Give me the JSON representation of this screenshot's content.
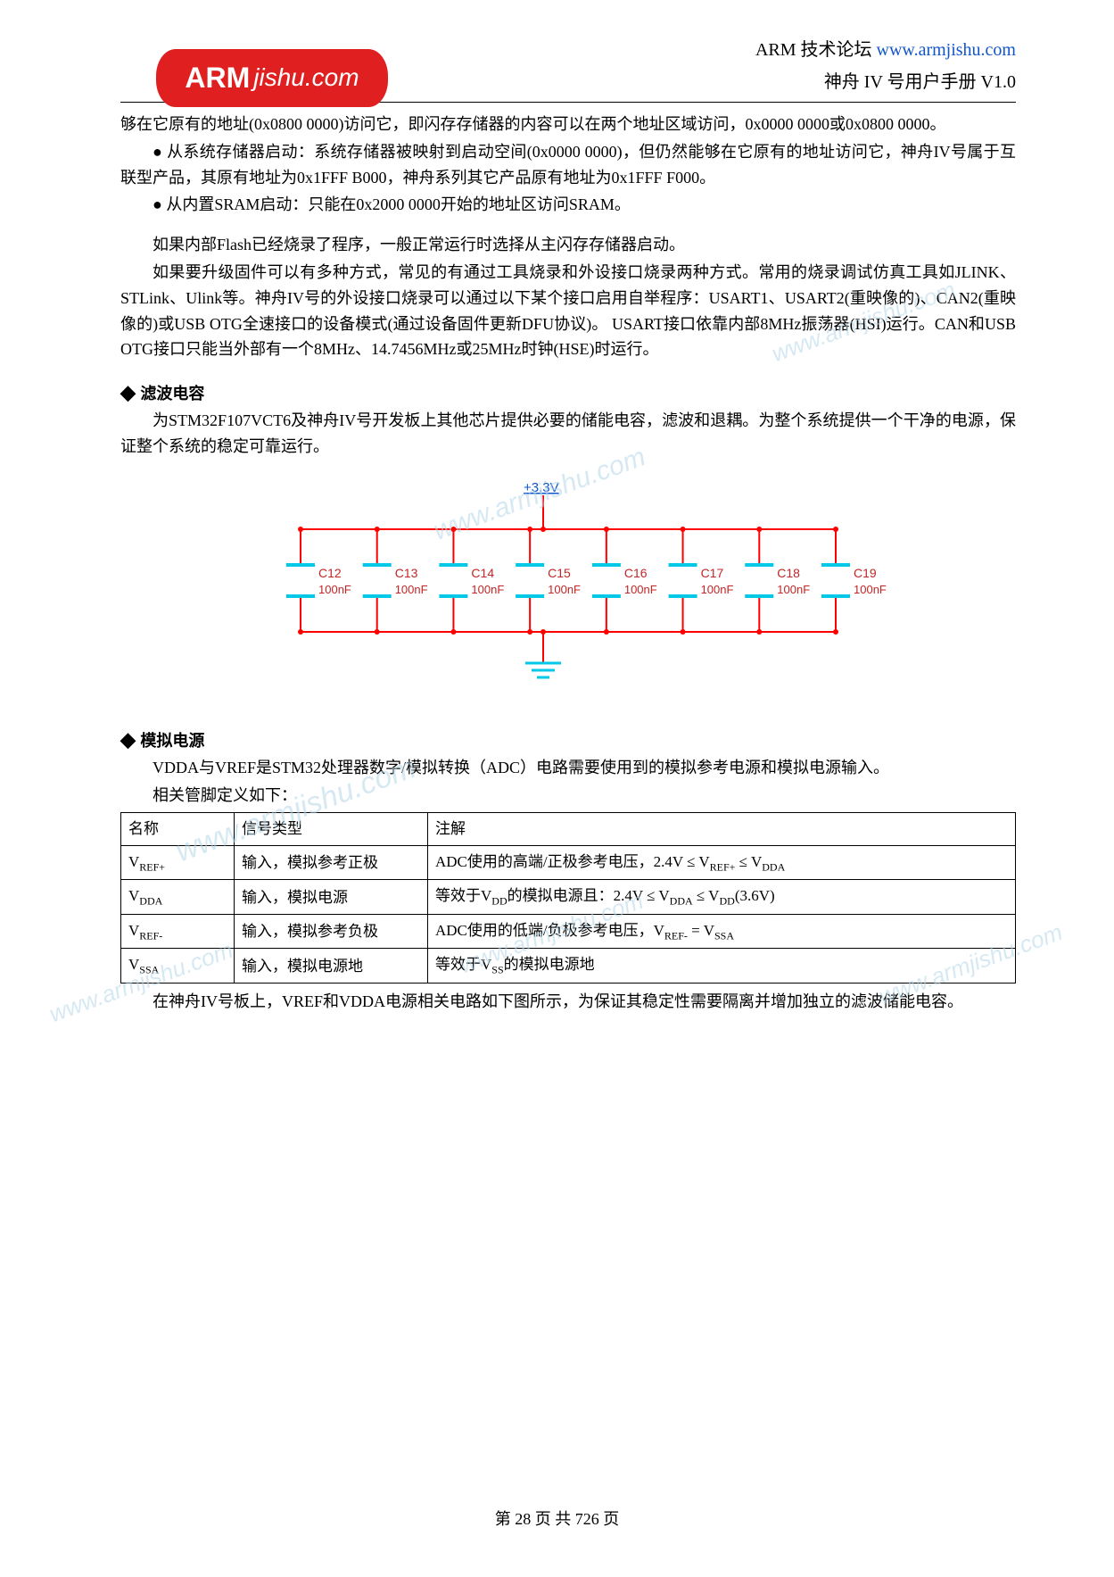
{
  "header": {
    "line1_left": "ARM 技术论坛 ",
    "line1_link": "www.armjishu.com",
    "line2": "神舟 IV 号用户手册  V1.0",
    "logo_main": "ARM",
    "logo_sub": "jishu.com"
  },
  "body": {
    "p1": "够在它原有的地址(0x0800 0000)访问它，即闪存存储器的内容可以在两个地址区域访问，0x0000 0000或0x0800 0000。",
    "p2": "从系统存储器启动：系统存储器被映射到启动空间(0x0000 0000)，但仍然能够在它原有的地址访问它，神舟IV号属于互联型产品，其原有地址为0x1FFF B000，神舟系列其它产品原有地址为0x1FFF F000。",
    "p3": "从内置SRAM启动：只能在0x2000 0000开始的地址区访问SRAM。",
    "p4": "如果内部Flash已经烧录了程序，一般正常运行时选择从主闪存存储器启动。",
    "p5": "如果要升级固件可以有多种方式，常见的有通过工具烧录和外设接口烧录两种方式。常用的烧录调试仿真工具如JLINK、STLink、Ulink等。神舟IV号的外设接口烧录可以通过以下某个接口启用自举程序：USART1、USART2(重映像的)、CAN2(重映像的)或USB OTG全速接口的设备模式(通过设备固件更新DFU协议)。  USART接口依靠内部8MHz振荡器(HSI)运行。CAN和USB OTG接口只能当外部有一个8MHz、14.7456MHz或25MHz时钟(HSE)时运行。",
    "sec1_title": "滤波电容",
    "sec1_p": "为STM32F107VCT6及神舟IV号开发板上其他芯片提供必要的储能电容，滤波和退耦。为整个系统提供一个干净的电源，保证整个系统的稳定可靠运行。",
    "sec2_title": "模拟电源",
    "sec2_p": "VDDA与VREF是STM32处理器数字/模拟转换（ADC）电路需要使用到的模拟参考电源和模拟电源输入。",
    "sec2_p2": "相关管脚定义如下：",
    "sec2_p3": "在神舟IV号板上，VREF和VDDA电源相关电路如下图所示，为保证其稳定性需要隔离并增加独立的滤波储能电容。"
  },
  "circuit": {
    "voltage_label": "+3.3V",
    "caps": [
      {
        "ref": "C12",
        "val": "100nF"
      },
      {
        "ref": "C13",
        "val": "100nF"
      },
      {
        "ref": "C14",
        "val": "100nF"
      },
      {
        "ref": "C15",
        "val": "100nF"
      },
      {
        "ref": "C16",
        "val": "100nF"
      },
      {
        "ref": "C17",
        "val": "100nF"
      },
      {
        "ref": "C18",
        "val": "100nF"
      },
      {
        "ref": "C19",
        "val": "100nF"
      }
    ],
    "colors": {
      "wire": "#ff0000",
      "cap": "#00c8e6",
      "label": "#c22626",
      "volt": "#1155cc"
    }
  },
  "table": {
    "header": [
      "名称",
      "信号类型",
      "注解"
    ],
    "rows": [
      {
        "name_html": "V<sub>REF+</sub>",
        "type": "输入，模拟参考正极",
        "note_html": "ADC使用的高端/正极参考电压，2.4V ≤ V<sub>REF+</sub> ≤ V<sub>DDA</sub>"
      },
      {
        "name_html": "V<sub>DDA</sub>",
        "type": "输入，模拟电源",
        "note_html": "等效于V<sub>DD</sub>的模拟电源且：2.4V ≤ V<sub>DDA</sub> ≤ V<sub>DD</sub>(3.6V)"
      },
      {
        "name_html": "V<sub>REF-</sub>",
        "type": "输入，模拟参考负极",
        "note_html": "ADC使用的低端/负极参考电压，V<sub>REF-</sub> = V<sub>SSA</sub>"
      },
      {
        "name_html": "V<sub>SSA</sub>",
        "type": "输入，模拟电源地",
        "note_html": "等效于V<sub>SS</sub>的模拟电源地"
      }
    ]
  },
  "footer": "第 28 页 共 726 页",
  "watermark": "www.armjishu.com"
}
